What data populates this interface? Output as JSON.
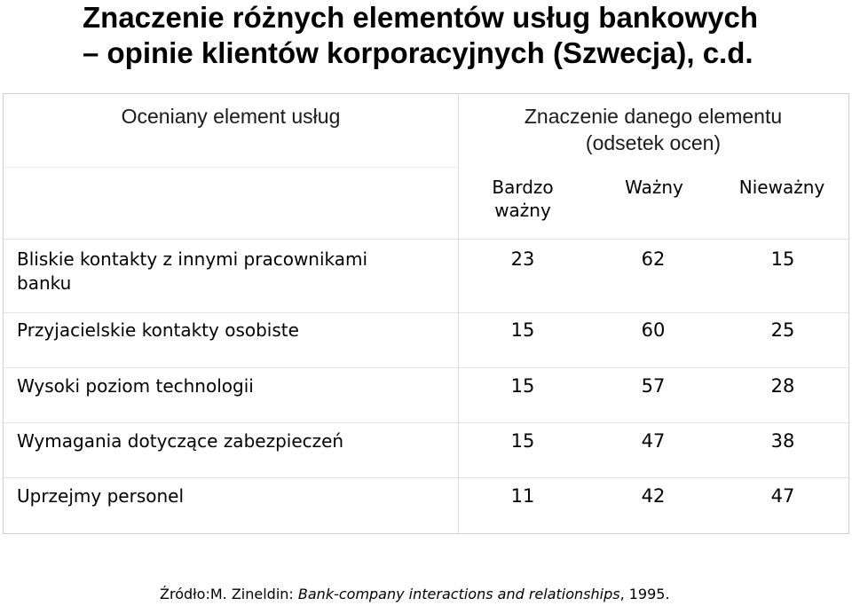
{
  "title": {
    "line1": "Znaczenie różnych elementów usług bankowych",
    "line2": "– opinie klientów korporacyjnych (Szwecja), c.d."
  },
  "table": {
    "header_left": "Oceniany element usług",
    "header_right_line1": "Znaczenie danego elementu",
    "header_right_line2": "(odsetek ocen)",
    "subheaders": [
      "Bardzo ważny",
      "Ważny",
      "Nieważny"
    ],
    "subheader_bardzo_line1": "Bardzo",
    "subheader_bardzo_line2": "ważny",
    "rows": [
      {
        "label_line1": "Bliskie kontakty z innymi pracownikami",
        "label_line2": "banku",
        "values": [
          "23",
          "62",
          "15"
        ]
      },
      {
        "label_line1": "Przyjacielskie kontakty osobiste",
        "label_line2": "",
        "values": [
          "15",
          "60",
          "25"
        ]
      },
      {
        "label_line1": "Wysoki poziom technologii",
        "label_line2": "",
        "values": [
          "15",
          "57",
          "28"
        ]
      },
      {
        "label_line1": "Wymagania dotyczące zabezpieczeń",
        "label_line2": "",
        "values": [
          "15",
          "47",
          "38"
        ]
      },
      {
        "label_line1": "Uprzejmy personel",
        "label_line2": "",
        "values": [
          "11",
          "42",
          "47"
        ]
      }
    ]
  },
  "source": {
    "prefix": "Źródło:M. Zineldin: ",
    "work": "Bank-company interactions and relationships",
    "suffix": ", 1995."
  }
}
